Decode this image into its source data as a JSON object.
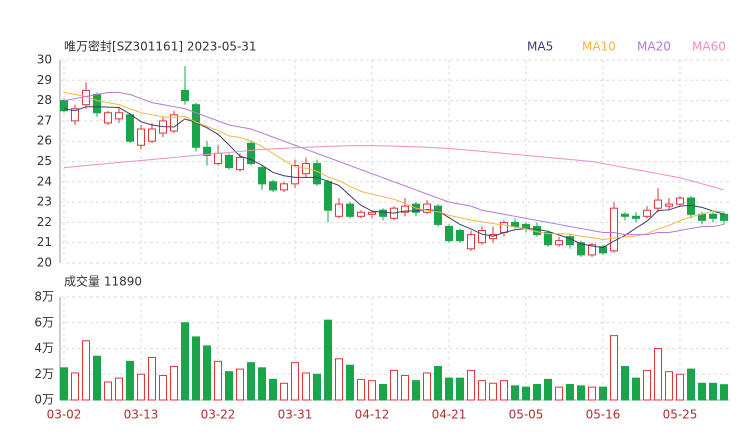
{
  "chart_data": [
    {
      "type": "candlestick",
      "title": "唯万密封[SZ301161] 2023-05-31",
      "up_color": "#e0353d",
      "down_color": "#1aa54a",
      "ylim": [
        20,
        30
      ],
      "yticks": [
        20,
        21,
        22,
        23,
        24,
        25,
        26,
        27,
        28,
        29,
        30
      ],
      "grid": true,
      "legend": "top-right",
      "open": [
        28.0,
        27.0,
        27.8,
        28.3,
        26.9,
        27.1,
        27.3,
        25.8,
        26.0,
        26.4,
        26.5,
        28.5,
        27.8,
        25.7,
        24.9,
        25.3,
        24.6,
        25.9,
        24.7,
        24.0,
        23.6,
        23.9,
        24.4,
        24.9,
        24.0,
        22.3,
        22.9,
        22.3,
        22.4,
        22.6,
        22.2,
        22.5,
        22.9,
        22.5,
        22.8,
        21.8,
        21.6,
        20.7,
        21.0,
        21.2,
        21.5,
        22.0,
        21.9,
        21.8,
        21.5,
        20.9,
        21.3,
        21.0,
        20.4,
        20.8,
        20.6,
        22.4,
        22.3,
        22.3,
        22.7,
        22.8,
        22.9,
        23.2,
        22.4,
        22.4,
        22.4
      ],
      "high": [
        28.1,
        27.8,
        28.9,
        28.4,
        27.5,
        27.7,
        27.4,
        26.8,
        26.9,
        27.2,
        27.5,
        29.7,
        27.9,
        26.0,
        25.8,
        25.4,
        25.4,
        26.0,
        24.8,
        24.1,
        24.0,
        25.1,
        25.2,
        25.1,
        24.1,
        23.2,
        23.0,
        22.6,
        22.6,
        22.7,
        22.8,
        23.2,
        23.0,
        23.1,
        22.9,
        21.9,
        21.7,
        21.6,
        21.8,
        21.8,
        22.1,
        22.2,
        22.0,
        22.0,
        21.6,
        21.3,
        21.4,
        21.1,
        21.0,
        20.9,
        23.0,
        22.5,
        22.5,
        22.8,
        23.7,
        23.2,
        23.3,
        23.3,
        22.5,
        22.5,
        22.5
      ],
      "low": [
        27.4,
        26.8,
        27.6,
        27.2,
        26.8,
        26.9,
        25.9,
        25.6,
        25.9,
        26.2,
        26.4,
        27.8,
        25.5,
        24.8,
        24.8,
        24.6,
        24.5,
        24.8,
        23.6,
        23.5,
        23.5,
        23.7,
        24.2,
        23.8,
        22.0,
        22.2,
        22.2,
        22.2,
        22.2,
        22.1,
        22.1,
        22.3,
        22.3,
        22.4,
        21.8,
        21.0,
        21.0,
        20.6,
        20.9,
        21.0,
        21.3,
        21.7,
        21.5,
        21.3,
        20.8,
        20.8,
        20.7,
        20.3,
        20.3,
        20.4,
        20.5,
        22.1,
        22.0,
        22.2,
        22.5,
        22.6,
        22.8,
        22.2,
        21.9,
        22.0,
        21.9
      ],
      "close": [
        27.5,
        27.6,
        28.5,
        27.4,
        27.4,
        27.4,
        26.0,
        26.6,
        26.6,
        27.0,
        27.3,
        28.0,
        25.7,
        25.3,
        25.4,
        24.7,
        25.2,
        24.9,
        23.9,
        23.6,
        23.9,
        24.8,
        24.9,
        23.9,
        22.6,
        22.9,
        22.3,
        22.5,
        22.5,
        22.3,
        22.7,
        22.8,
        22.5,
        22.9,
        21.9,
        21.1,
        21.1,
        21.4,
        21.6,
        21.4,
        22.0,
        21.8,
        21.7,
        21.4,
        20.9,
        21.1,
        20.9,
        20.4,
        20.9,
        20.5,
        22.7,
        22.3,
        22.2,
        22.6,
        23.1,
        22.9,
        23.2,
        22.4,
        22.1,
        22.2,
        22.1
      ],
      "series": [
        {
          "name": "MA5",
          "color": "#3d3d6b",
          "values": [
            27.6,
            27.5,
            27.7,
            27.7,
            27.68,
            27.66,
            27.34,
            26.96,
            26.8,
            26.72,
            26.7,
            27.1,
            26.92,
            26.66,
            26.34,
            25.82,
            25.26,
            25.1,
            24.82,
            24.46,
            24.3,
            24.22,
            24.22,
            24.22,
            24.02,
            23.82,
            23.32,
            22.84,
            22.56,
            22.5,
            22.46,
            22.56,
            22.56,
            22.64,
            22.56,
            22.24,
            21.9,
            21.68,
            21.42,
            21.32,
            21.5,
            21.64,
            21.7,
            21.66,
            21.56,
            21.38,
            21.2,
            20.94,
            20.84,
            20.76,
            21.08,
            21.36,
            21.72,
            22.06,
            22.58,
            22.62,
            22.8,
            22.84,
            22.74,
            22.56,
            22.4
          ]
        },
        {
          "name": "MA10",
          "color": "#f5b642",
          "values": [
            28.4,
            28.3,
            28.2,
            28.0,
            27.9,
            27.8,
            27.6,
            27.4,
            27.3,
            27.2,
            27.18,
            27.22,
            26.94,
            26.73,
            26.53,
            26.26,
            26.18,
            26.01,
            25.74,
            25.4,
            25.06,
            24.74,
            24.66,
            24.52,
            24.24,
            24.06,
            23.77,
            23.53,
            23.39,
            23.26,
            23.14,
            22.94,
            22.7,
            22.6,
            22.53,
            22.35,
            22.23,
            22.12,
            22.03,
            21.94,
            21.87,
            21.77,
            21.69,
            21.54,
            21.44,
            21.44,
            21.42,
            21.32,
            21.25,
            21.16,
            21.23,
            21.28,
            21.33,
            21.45,
            21.67,
            21.85,
            22.08,
            22.28,
            22.4,
            22.57,
            22.51
          ]
        },
        {
          "name": "MA20",
          "color": "#b57ad8",
          "values": [
            28.0,
            28.1,
            28.2,
            28.3,
            28.4,
            28.4,
            28.3,
            28.1,
            27.9,
            27.8,
            27.7,
            27.6,
            27.4,
            27.2,
            27.0,
            26.8,
            26.7,
            26.6,
            26.4,
            26.2,
            26.0,
            25.8,
            25.6,
            25.4,
            25.2,
            25.0,
            24.8,
            24.6,
            24.4,
            24.2,
            24.0,
            23.8,
            23.6,
            23.4,
            23.2,
            23.0,
            22.9,
            22.8,
            22.6,
            22.5,
            22.4,
            22.3,
            22.2,
            22.1,
            22.0,
            21.9,
            21.8,
            21.7,
            21.6,
            21.5,
            21.5,
            21.4,
            21.4,
            21.4,
            21.5,
            21.5,
            21.6,
            21.7,
            21.8,
            21.8,
            21.9
          ]
        },
        {
          "name": "MA60",
          "color": "#f08cc8",
          "values": [
            24.7,
            24.75,
            24.8,
            24.85,
            24.9,
            24.95,
            25.0,
            25.05,
            25.1,
            25.15,
            25.2,
            25.25,
            25.3,
            25.35,
            25.4,
            25.45,
            25.5,
            25.55,
            25.6,
            25.62,
            25.65,
            25.68,
            25.7,
            25.72,
            25.75,
            25.76,
            25.78,
            25.78,
            25.78,
            25.77,
            25.76,
            25.74,
            25.72,
            25.7,
            25.67,
            25.64,
            25.6,
            25.55,
            25.5,
            25.45,
            25.4,
            25.35,
            25.3,
            25.25,
            25.2,
            25.15,
            25.1,
            25.05,
            25.0,
            24.9,
            24.8,
            24.7,
            24.6,
            24.5,
            24.4,
            24.3,
            24.2,
            24.05,
            23.9,
            23.75,
            23.6
          ]
        }
      ]
    },
    {
      "type": "bar",
      "title": "成交量 11890",
      "categories": [
        "03-02",
        null,
        null,
        null,
        null,
        null,
        null,
        "03-13",
        null,
        null,
        null,
        null,
        null,
        null,
        "03-22",
        null,
        null,
        null,
        null,
        null,
        null,
        "03-31",
        null,
        null,
        null,
        null,
        null,
        null,
        "04-12",
        null,
        null,
        null,
        null,
        null,
        null,
        "04-21",
        null,
        null,
        null,
        null,
        null,
        null,
        "05-05",
        null,
        null,
        null,
        null,
        null,
        null,
        "05-16",
        null,
        null,
        null,
        null,
        null,
        null,
        "05-25",
        null,
        null,
        null,
        null
      ],
      "values": [
        2.5,
        2.1,
        4.6,
        3.4,
        1.4,
        1.7,
        3.0,
        2.0,
        3.3,
        1.9,
        2.6,
        6.0,
        4.9,
        4.2,
        3.0,
        2.2,
        2.4,
        2.9,
        2.5,
        1.6,
        1.3,
        2.9,
        2.1,
        2.0,
        6.2,
        3.2,
        2.7,
        1.6,
        1.5,
        1.2,
        2.3,
        1.9,
        1.5,
        2.1,
        2.6,
        1.7,
        1.7,
        2.3,
        1.5,
        1.3,
        1.5,
        1.1,
        1.0,
        1.2,
        1.6,
        1.0,
        1.2,
        1.1,
        1.0,
        1.0,
        5.0,
        2.6,
        1.7,
        2.3,
        4.0,
        2.2,
        2.0,
        2.4,
        1.3,
        1.3,
        1.189
      ],
      "ylim": [
        0,
        8
      ],
      "yticks": [
        {
          "value": 0,
          "label": "0万"
        },
        {
          "value": 2,
          "label": "2万"
        },
        {
          "value": 4,
          "label": "4万"
        },
        {
          "value": 6,
          "label": "6万"
        },
        {
          "value": 8,
          "label": "8万"
        }
      ],
      "grid": true
    }
  ]
}
